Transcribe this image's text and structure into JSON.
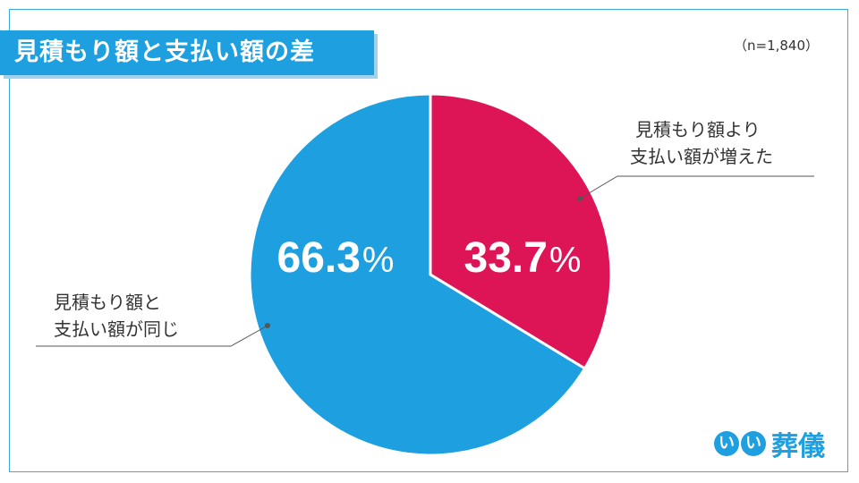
{
  "title": "見積もり額と支払い額の差",
  "sample_note": "（n=1,840）",
  "colors": {
    "accent": "#1e9fe0",
    "increased": "#dd1456",
    "same": "#1e9fe0"
  },
  "chart_data": {
    "type": "pie",
    "categories": [
      "見積もり額より支払い額が増えた",
      "見積もり額と支払い額が同じ"
    ],
    "values": [
      33.7,
      66.3
    ],
    "unit": "%",
    "labels": [
      {
        "line1": "見積もり額より",
        "line2": "支払い額が増えた"
      },
      {
        "line1": "見積もり額と",
        "line2": "支払い額が同じ"
      }
    ],
    "start_angle": "12 o'clock",
    "direction": "clockwise"
  },
  "logo": {
    "mark1": "い",
    "mark2": "い",
    "text": "葬儀"
  }
}
